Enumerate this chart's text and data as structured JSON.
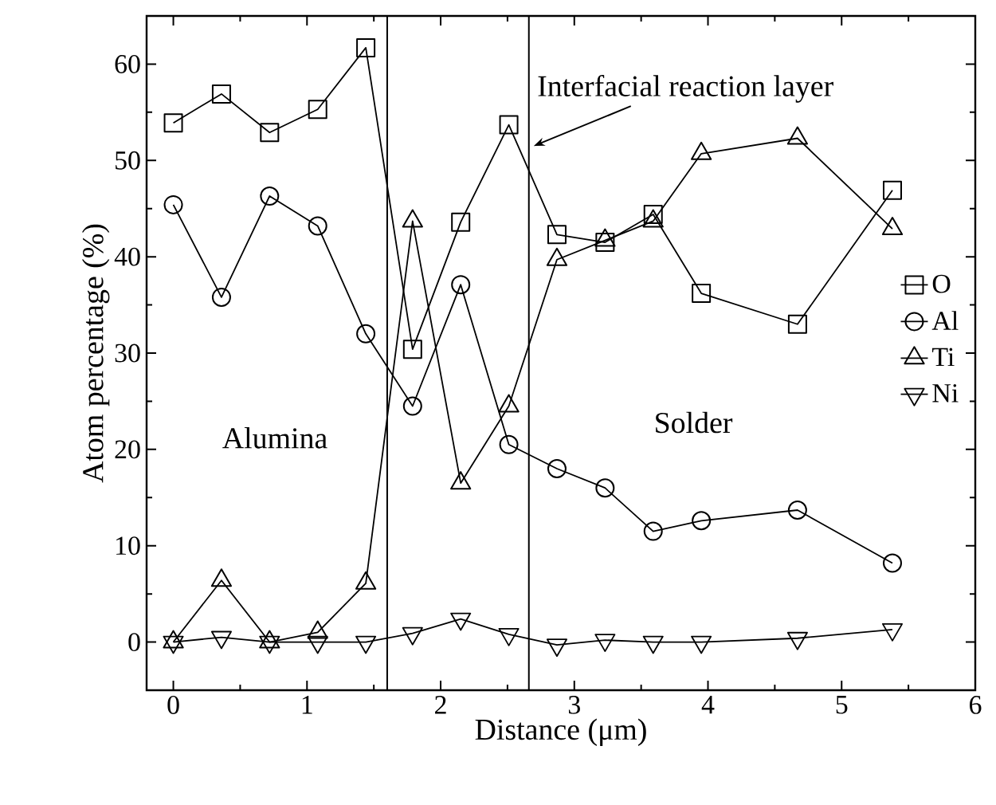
{
  "chart_data": {
    "type": "line",
    "xlabel": "Distance (μm)",
    "ylabel": "Atom percentage (%)",
    "xlim": [
      -0.2,
      6
    ],
    "ylim": [
      -5,
      65
    ],
    "xticks": [
      0,
      1,
      2,
      3,
      4,
      5,
      6
    ],
    "yticks": [
      0,
      10,
      20,
      30,
      40,
      50,
      60
    ],
    "x": [
      0,
      0.36,
      0.72,
      1.08,
      1.44,
      1.79,
      2.15,
      2.51,
      2.87,
      3.23,
      3.59,
      3.95,
      4.67,
      5.38
    ],
    "series": [
      {
        "name": "O",
        "color": "#000000",
        "marker": "square",
        "values": [
          53.9,
          56.9,
          52.9,
          55.3,
          61.7,
          30.4,
          43.6,
          53.7,
          42.3,
          41.5,
          44.4,
          36.2,
          33.0,
          46.9
        ]
      },
      {
        "name": "Al",
        "color": "#000000",
        "marker": "circle",
        "values": [
          45.4,
          35.8,
          46.3,
          43.2,
          32.0,
          24.5,
          37.1,
          20.5,
          18.0,
          16.0,
          11.5,
          12.6,
          13.7,
          8.2
        ]
      },
      {
        "name": "Ti",
        "color": "#000000",
        "marker": "triangle",
        "values": [
          0.0,
          6.4,
          0.0,
          1.0,
          6.1,
          43.7,
          16.5,
          24.5,
          39.7,
          41.7,
          43.7,
          50.7,
          52.3,
          42.9
        ]
      },
      {
        "name": "Ni",
        "color": "#000000",
        "marker": "triangle-down",
        "values": [
          0.0,
          0.5,
          0.0,
          0.0,
          0.0,
          0.9,
          2.4,
          0.8,
          -0.3,
          0.2,
          0.0,
          0.0,
          0.4,
          1.3
        ]
      }
    ],
    "ref_lines": [
      {
        "axis": "x",
        "value": 1.6,
        "color": "#000000"
      },
      {
        "axis": "x",
        "value": 2.66,
        "color": "#000000"
      }
    ],
    "annotations": [
      {
        "text": "Interfacial reaction layer",
        "x": 2.66,
        "y": 51.5
      },
      "Alumina",
      "Solder"
    ],
    "legend": "right",
    "line_style": "solid"
  }
}
